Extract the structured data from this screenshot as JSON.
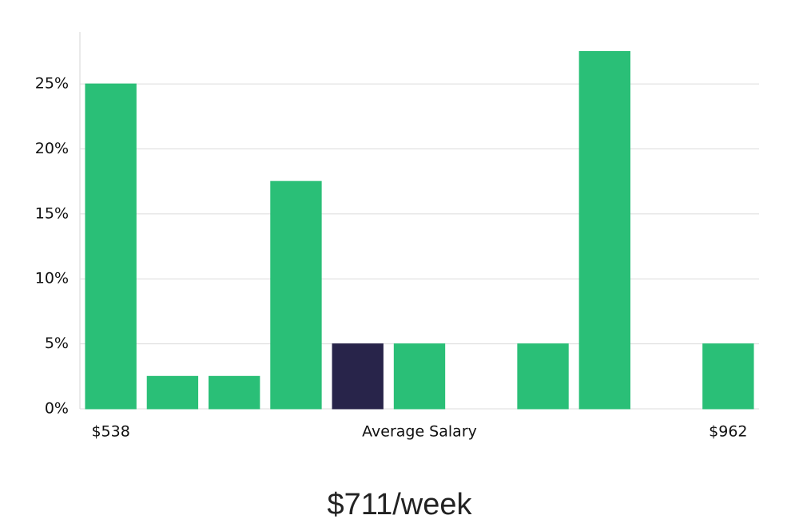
{
  "chart_data": {
    "type": "bar",
    "x_label": "Average Salary",
    "annotation": "$711/week",
    "categories": [
      "$538",
      null,
      null,
      null,
      null,
      null,
      null,
      null,
      null,
      null,
      "$962"
    ],
    "values": [
      25,
      2.5,
      2.5,
      17.5,
      5,
      5,
      0,
      5,
      27.5,
      0,
      5
    ],
    "colors": [
      "#2abf77",
      "#2abf77",
      "#2abf77",
      "#2abf77",
      "#28244a",
      "#2abf77",
      "#2abf77",
      "#2abf77",
      "#2abf77",
      "#2abf77",
      "#2abf77"
    ],
    "ylim": [
      0,
      29
    ],
    "yticks": [
      {
        "value": 0,
        "label": "0%"
      },
      {
        "value": 5,
        "label": "5%"
      },
      {
        "value": 10,
        "label": "10%"
      },
      {
        "value": 15,
        "label": "15%"
      },
      {
        "value": 20,
        "label": "20%"
      },
      {
        "value": 25,
        "label": "25%"
      }
    ],
    "grid": true
  }
}
